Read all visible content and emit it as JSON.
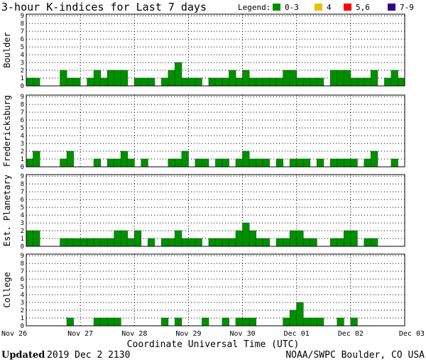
{
  "chart_data": {
    "type": "bar",
    "title": "3-hour K-indices for Last 7 days",
    "legend": {
      "label": "Legend:",
      "items": [
        {
          "label": "0-3",
          "color": "#008f00"
        },
        {
          "label": "4",
          "color": "#e6c200"
        },
        {
          "label": "5,6",
          "color": "#ff0000"
        },
        {
          "label": "7-9",
          "color": "#3a0088"
        }
      ],
      "placement": "top-right"
    },
    "xlabel": "Coordinate Universal Time (UTC)",
    "x_ticks": [
      "Nov 26",
      "Nov 27",
      "Nov 28",
      "Nov 29",
      "Nov 30",
      "Dec 01",
      "Dec 02",
      "Dec 03"
    ],
    "y_ticks": [
      "0",
      "1",
      "2",
      "3",
      "4",
      "5",
      "6",
      "7",
      "8",
      "9"
    ],
    "ylim": [
      0,
      9
    ],
    "grid": true,
    "intervals_per_day": 8,
    "panels": [
      {
        "name": "Boulder",
        "values": [
          1,
          1,
          0,
          0,
          0,
          2,
          1,
          1,
          0,
          1,
          2,
          1,
          2,
          2,
          2,
          0,
          1,
          1,
          1,
          0,
          1,
          2,
          3,
          1,
          1,
          1,
          0,
          1,
          1,
          1,
          2,
          1,
          2,
          1,
          1,
          1,
          1,
          1,
          2,
          2,
          1,
          1,
          1,
          1,
          0,
          2,
          2,
          2,
          1,
          1,
          1,
          2,
          0,
          1,
          2,
          1,
          0
        ]
      },
      {
        "name": "Fredericksburg",
        "values": [
          1,
          2,
          0,
          0,
          0,
          1,
          2,
          0,
          0,
          0,
          1,
          0,
          1,
          1,
          2,
          1,
          0,
          1,
          0,
          0,
          0,
          1,
          1,
          2,
          0,
          1,
          1,
          0,
          1,
          1,
          0,
          1,
          2,
          1,
          1,
          1,
          0,
          1,
          0,
          1,
          1,
          1,
          0,
          1,
          0,
          1,
          1,
          1,
          1,
          0,
          1,
          2,
          0,
          0,
          1,
          0,
          0
        ]
      },
      {
        "name": "Est. Planetary",
        "values": [
          2,
          2,
          0,
          0,
          0,
          1,
          1,
          1,
          1,
          1,
          1,
          1,
          1,
          2,
          2,
          1,
          2,
          0,
          1,
          0,
          1,
          1,
          2,
          1,
          1,
          1,
          0,
          1,
          1,
          1,
          1,
          2,
          3,
          2,
          1,
          1,
          0,
          1,
          1,
          2,
          2,
          1,
          1,
          0,
          0,
          1,
          1,
          2,
          2,
          0,
          1,
          1,
          0,
          0,
          0,
          0,
          0
        ]
      },
      {
        "name": "College",
        "values": [
          0,
          0,
          0,
          0,
          0,
          0,
          1,
          0,
          0,
          0,
          1,
          1,
          1,
          1,
          0,
          0,
          0,
          0,
          0,
          0,
          1,
          0,
          1,
          0,
          0,
          0,
          1,
          0,
          0,
          1,
          0,
          1,
          1,
          1,
          0,
          0,
          0,
          0,
          1,
          2,
          3,
          1,
          1,
          1,
          0,
          0,
          1,
          0,
          1,
          0,
          0,
          0,
          0,
          0,
          0,
          0,
          0
        ]
      }
    ]
  },
  "footer": {
    "updated_label": "Updated",
    "updated_time": "2019 Dec  2 2130",
    "source": "NOAA/SWPC Boulder, CO USA"
  },
  "colors": {
    "bar": "#008f00",
    "bar_stroke": "#005a00",
    "grid": "#000000",
    "frame": "#000000"
  }
}
